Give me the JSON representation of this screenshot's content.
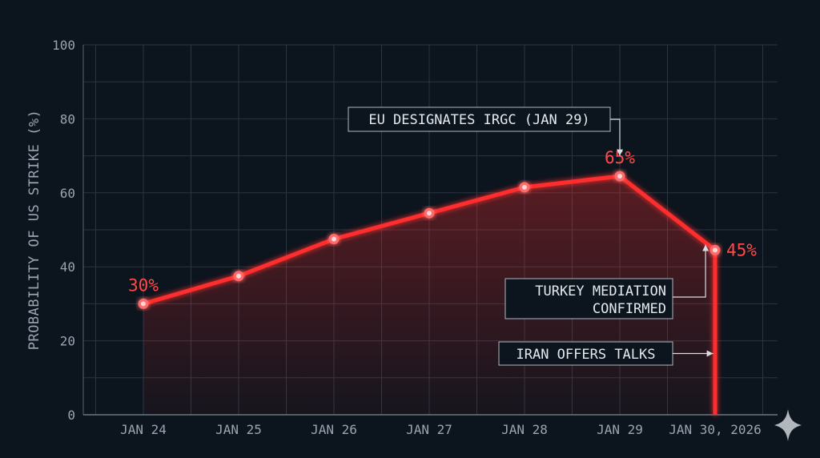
{
  "chart_data": {
    "type": "line",
    "title": "",
    "xlabel": "",
    "ylabel": "PROBABILITY OF US STRIKE (%)",
    "ylim": [
      0,
      100
    ],
    "yticks": [
      0,
      20,
      40,
      60,
      80,
      100
    ],
    "grid": true,
    "categories": [
      "JAN 24",
      "JAN 25",
      "JAN 26",
      "JAN 27",
      "JAN 28",
      "JAN 29",
      "JAN 30, 2026"
    ],
    "series": [
      {
        "points": [
          {
            "x": 0,
            "y": 30
          },
          {
            "x": 1,
            "y": 37.5
          },
          {
            "x": 2,
            "y": 47.5
          },
          {
            "x": 3,
            "y": 54.5
          },
          {
            "x": 4,
            "y": 61.5
          },
          {
            "x": 5,
            "y": 64.5
          },
          {
            "x": 6,
            "y": 44.5
          },
          {
            "x": 6,
            "y": 0
          }
        ],
        "color": "#ff2e2e"
      }
    ],
    "data_labels": [
      {
        "point": 0,
        "text": "30%"
      },
      {
        "point": 5,
        "text": "65%"
      },
      {
        "point": 6,
        "text": "45%"
      }
    ],
    "annotations": [
      {
        "text": [
          "EU DESIGNATES IRGC (JAN 29)"
        ],
        "target_x": 5,
        "target_y": 70
      },
      {
        "text": [
          "TURKEY MEDIATION",
          "CONFIRMED"
        ],
        "target_x": 5.9,
        "target_y": 46
      },
      {
        "text": [
          "IRAN OFFERS TALKS"
        ],
        "target_x": 5.98,
        "target_y": 16
      }
    ]
  },
  "colors": {
    "background": "#0c141d",
    "grid": "#2a3542",
    "line": "#ff2e2e",
    "label": "#ff4a4a"
  },
  "decor_icon": "sparkle-icon"
}
